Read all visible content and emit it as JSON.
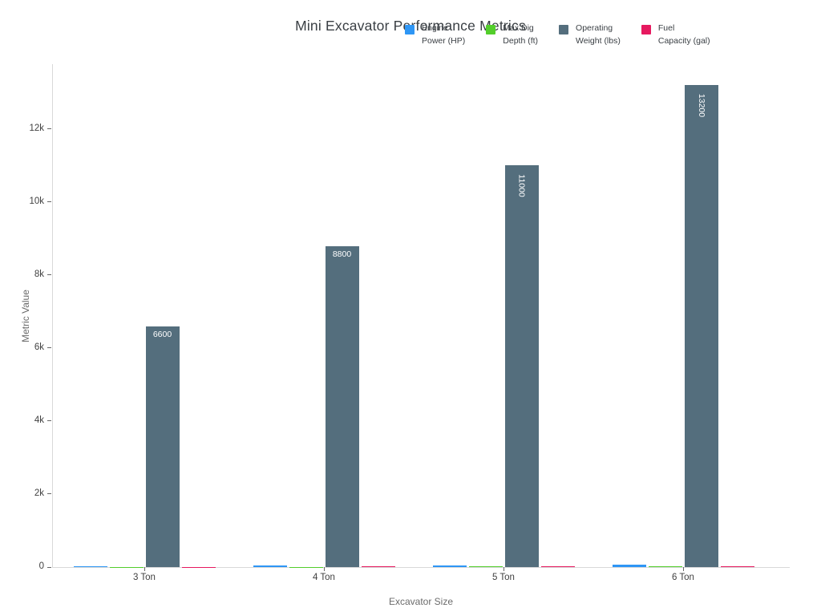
{
  "chart_data": {
    "type": "bar",
    "title": "Mini Excavator Performance Metrics",
    "xlabel": "Excavator Size",
    "ylabel": "Metric Value",
    "categories": [
      "3 Ton",
      "4 Ton",
      "5 Ton",
      "6 Ton"
    ],
    "series": [
      {
        "name": "Engine Power (HP)",
        "legend_lines": [
          "Engine",
          "Power (HP)"
        ],
        "color": "#2E96F5",
        "values": [
          25,
          35,
          45,
          60
        ],
        "show_values": false
      },
      {
        "name": "Max Dig Depth (ft)",
        "legend_lines": [
          "Max Dig",
          "Depth (ft)"
        ],
        "color": "#53CE2B",
        "values": [
          9,
          10,
          11.5,
          12.5
        ],
        "show_values": false
      },
      {
        "name": "Operating Weight (lbs)",
        "legend_lines": [
          "Operating",
          "Weight (lbs)"
        ],
        "color": "#546E7D",
        "values": [
          6600,
          8800,
          11000,
          13200
        ],
        "show_values": true,
        "value_labels": [
          "6600",
          "8800",
          "11000",
          "13200"
        ],
        "label_rotated": [
          false,
          false,
          true,
          true
        ]
      },
      {
        "name": "Fuel Capacity (gal)",
        "legend_lines": [
          "Fuel",
          "Capacity (gal)"
        ],
        "color": "#E6195F",
        "values": [
          10,
          13,
          17,
          21
        ],
        "show_values": false
      }
    ],
    "ylim": [
      0,
      13780
    ],
    "yticks": {
      "values": [
        0,
        2000,
        4000,
        6000,
        8000,
        10000,
        12000
      ],
      "labels": [
        "0",
        "2k",
        "4k",
        "6k",
        "8k",
        "10k",
        "12k"
      ]
    },
    "grid": false,
    "legend_position": "top-right"
  }
}
